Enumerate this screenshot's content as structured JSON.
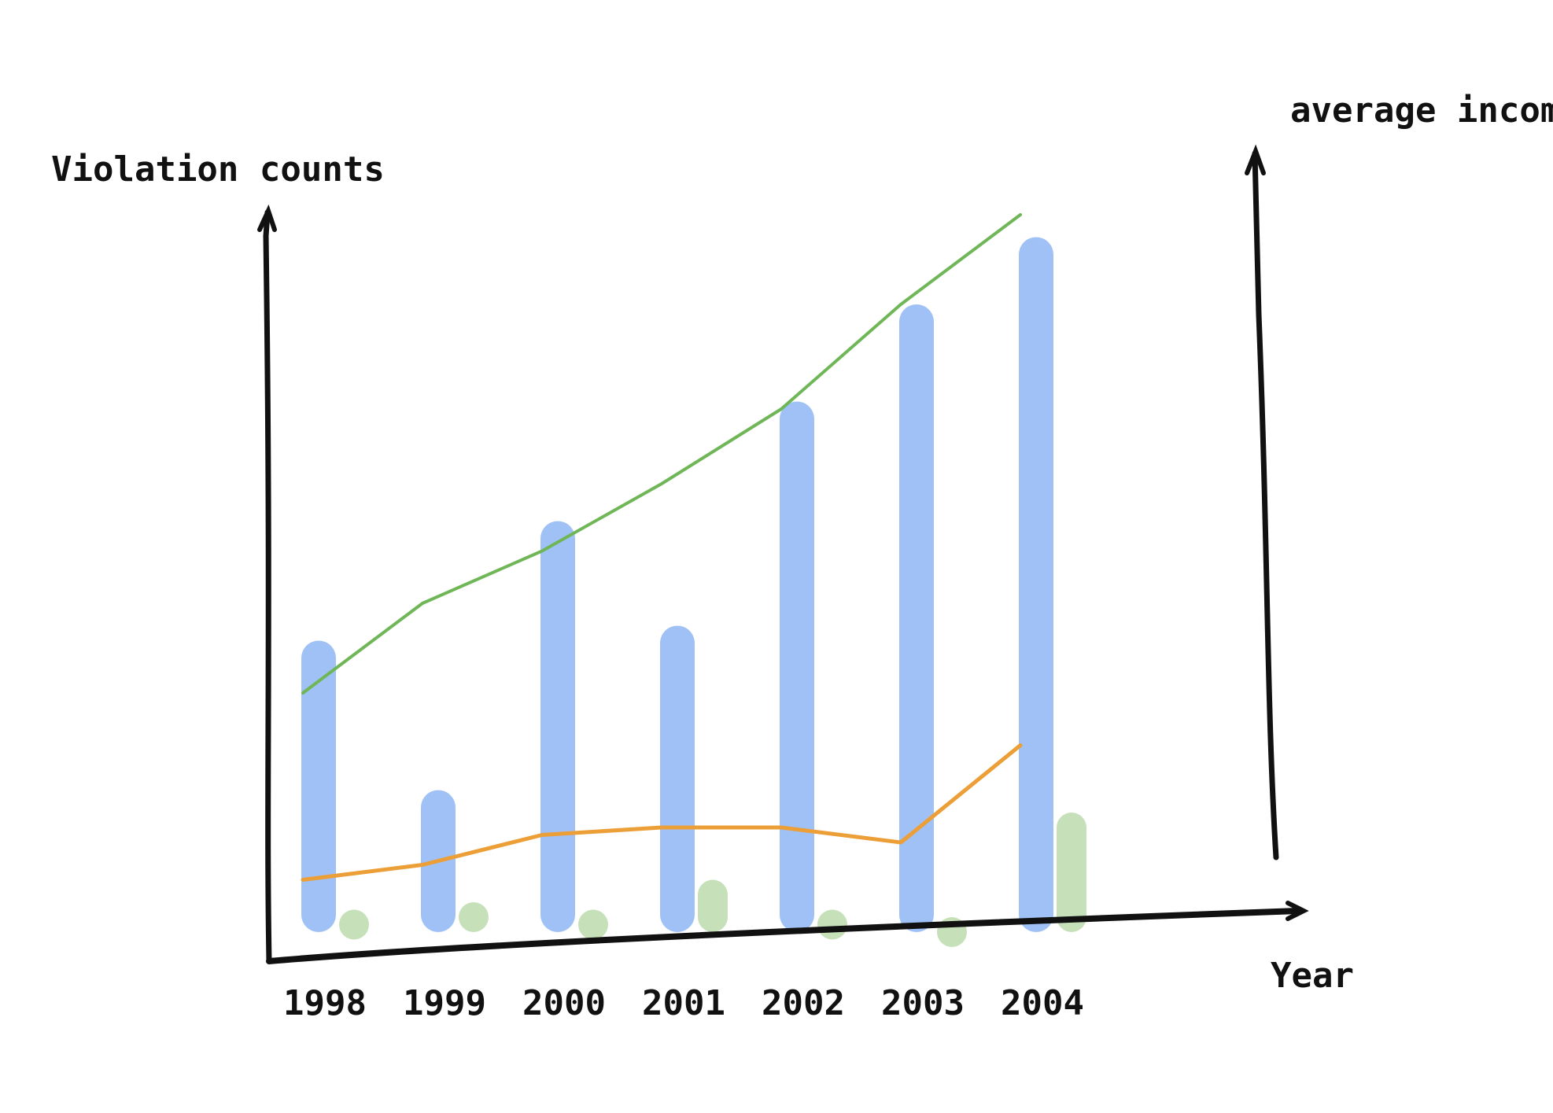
{
  "chart_data": {
    "type": "bar",
    "title": "",
    "xlabel": "Year",
    "ylabel": "Violation counts",
    "y2label": "average income",
    "categories": [
      "1998",
      "1999",
      "2000",
      "2001",
      "2002",
      "2003",
      "2004"
    ],
    "ylim": [
      0,
      100
    ],
    "y2lim": [
      0,
      100
    ],
    "grid": false,
    "legend": "none",
    "bar_series": [
      {
        "axis": "left",
        "color": "#a0c1f5",
        "values": [
          39,
          19,
          55,
          41,
          71,
          84,
          93
        ]
      },
      {
        "axis": "left",
        "color": "#c6e0b9",
        "values": [
          3,
          4,
          3,
          7,
          3,
          2,
          16
        ]
      }
    ],
    "line_series": [
      {
        "axis": "left",
        "color": "#6fb657",
        "values": [
          32,
          44,
          51,
          60,
          70,
          84,
          96
        ]
      },
      {
        "axis": "left",
        "color": "#ec9e37",
        "values": [
          7,
          9,
          13,
          14,
          14,
          12,
          25
        ]
      }
    ]
  }
}
